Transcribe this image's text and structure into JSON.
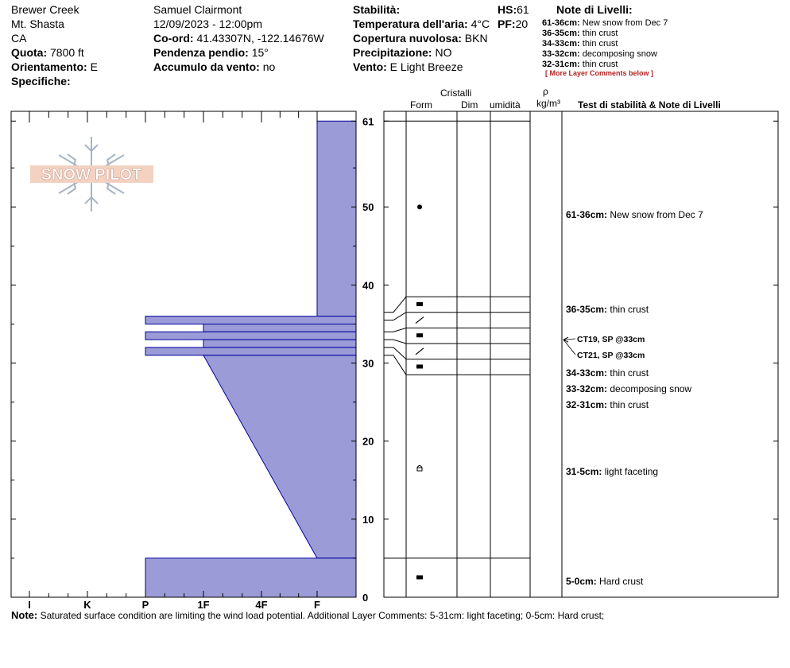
{
  "header": {
    "location": "Brewer Creek",
    "range": "Mt. Shasta",
    "state": "CA",
    "elevation_label": "Quota:",
    "elevation": "7800 ft",
    "aspect_label": "Orientamento:",
    "aspect": "E",
    "specifics_label": "Specifiche:",
    "observer": "Samuel Clairmont",
    "datetime": "12/09/2023 - 12:00pm",
    "coord_label": "Co-ord:",
    "coord": "41.43307N, -122.14676W",
    "slope_label": "Pendenza pendio:",
    "slope": "15°",
    "wind_load_label": "Accumulo da vento:",
    "wind_load": "no",
    "stability_label": "Stabilità:",
    "stability": "",
    "hs_label": "HS:",
    "hs": "61",
    "air_temp_label": "Temperatura dell'aria:",
    "air_temp": "4°C",
    "pf_label": "PF:",
    "pf": "20",
    "cloud_label": "Copertura nuvolosa:",
    "cloud": "BKN",
    "precip_label": "Precipitazione:",
    "precip": "NO",
    "wind_label": "Vento:",
    "wind": "E Light Breeze"
  },
  "layer_notes": {
    "title": "Note di Livelli:",
    "items": [
      {
        "range": "61-36cm:",
        "text": "New snow from Dec 7"
      },
      {
        "range": "36-35cm:",
        "text": "thin crust"
      },
      {
        "range": "34-33cm:",
        "text": "thin crust"
      },
      {
        "range": "33-32cm:",
        "text": "decomposing snow"
      },
      {
        "range": "32-31cm:",
        "text": "thin crust"
      }
    ],
    "more": "[ More Layer Comments below ]"
  },
  "columns": {
    "crystals": "Cristalli",
    "form": "Form",
    "dim": "Dim",
    "moisture": "umidità",
    "rho": "ρ",
    "density_unit": "kg/m³",
    "stability_notes": "Test di stabilità & Note di Livelli"
  },
  "logo": "SNOW PILOT",
  "footer": {
    "label": "Note:",
    "text": "Saturated surface condition are limiting the wind load potential. Additional Layer Comments: 5-31cm: light faceting; 0-5cm: Hard crust;"
  },
  "colors": {
    "fill": "#9b9bd7",
    "outline": "#0000a0"
  },
  "chart_data": {
    "type": "area",
    "description": "Snow pit hand hardness profile",
    "x_categories": [
      "I",
      "K",
      "P",
      "1F",
      "4F",
      "F"
    ],
    "ylim": [
      0,
      61
    ],
    "y_ticks": [
      0,
      10,
      20,
      30,
      40,
      50,
      61
    ],
    "hardness_profile": [
      {
        "top": 61,
        "bottom": 36,
        "hardness_top": "F",
        "hardness_bottom": "F"
      },
      {
        "top": 36,
        "bottom": 35,
        "hardness_top": "P",
        "hardness_bottom": "P"
      },
      {
        "top": 35,
        "bottom": 34,
        "hardness_top": "1F",
        "hardness_bottom": "1F"
      },
      {
        "top": 34,
        "bottom": 33,
        "hardness_top": "P",
        "hardness_bottom": "P"
      },
      {
        "top": 33,
        "bottom": 32,
        "hardness_top": "1F",
        "hardness_bottom": "1F"
      },
      {
        "top": 32,
        "bottom": 31,
        "hardness_top": "P",
        "hardness_bottom": "P"
      },
      {
        "top": 31,
        "bottom": 5,
        "hardness_top": "1F",
        "hardness_bottom": "F"
      },
      {
        "top": 5,
        "bottom": 0,
        "hardness_top": "P",
        "hardness_bottom": "P"
      }
    ],
    "layer_boundaries": [
      61,
      38.5,
      36.5,
      34.5,
      32.5,
      30.5,
      28.5,
      5,
      0
    ],
    "crystal_forms": [
      {
        "depth": 50,
        "symbol": "PP"
      },
      {
        "depth": 37.5,
        "symbol": "MFcr"
      },
      {
        "depth": 35.5,
        "symbol": "DF"
      },
      {
        "depth": 33.5,
        "symbol": "MFcr"
      },
      {
        "depth": 31.5,
        "symbol": "DF"
      },
      {
        "depth": 29.5,
        "symbol": "MFcr"
      },
      {
        "depth": 16.5,
        "symbol": "FCxr"
      },
      {
        "depth": 2.5,
        "symbol": "MFcr"
      }
    ],
    "stability_tests": [
      {
        "depth": 33,
        "label": "CT19, SP @33cm"
      },
      {
        "depth": 33,
        "label": "CT21, SP @33cm"
      }
    ],
    "right_notes": [
      {
        "range": "61-36cm:",
        "text": "New snow from Dec 7"
      },
      {
        "range": "36-35cm:",
        "text": "thin crust"
      },
      {
        "range": "34-33cm:",
        "text": "thin crust"
      },
      {
        "range": "33-32cm:",
        "text": "decomposing snow"
      },
      {
        "range": "32-31cm:",
        "text": "thin crust"
      },
      {
        "range": "31-5cm:",
        "text": "light faceting"
      },
      {
        "range": "5-0cm:",
        "text": "Hard crust"
      }
    ]
  }
}
